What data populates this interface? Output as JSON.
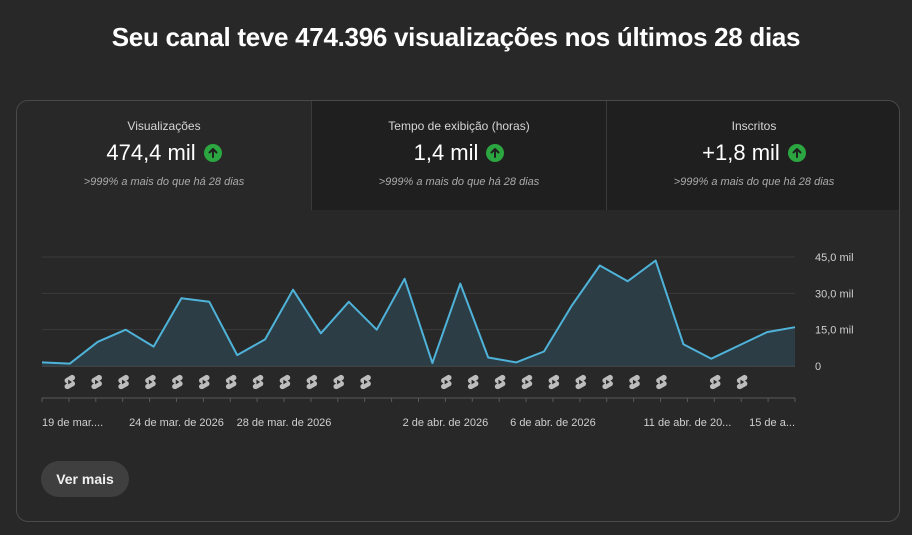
{
  "headline": "Seu canal teve 474.396 visualizações nos últimos 28 dias",
  "metrics": [
    {
      "label": "Visualizações",
      "value": "474,4 mil",
      "compare": ">999% a mais do que há 28 dias",
      "trend_icon": "arrow-up-icon"
    },
    {
      "label": "Tempo de exibição (horas)",
      "value": "1,4 mil",
      "compare": ">999% a mais do que há 28 dias",
      "trend_icon": "arrow-up-icon"
    },
    {
      "label": "Inscritos",
      "value": "+1,8 mil",
      "compare": ">999% a mais do que há 28 dias",
      "trend_icon": "arrow-up-icon"
    }
  ],
  "chart_data": {
    "type": "area",
    "series": [
      {
        "values": [
          1500,
          1000,
          10000,
          15000,
          8000,
          28000,
          26500,
          4500,
          11000,
          31500,
          13500,
          26500,
          15000,
          36000,
          1200,
          34000,
          3500,
          1500,
          6000,
          25000,
          41500,
          35000,
          43500,
          9000,
          3000,
          8500,
          14000,
          16000
        ]
      }
    ],
    "yticks": [
      "0",
      "15,0 mil",
      "30,0 mil",
      "45,0 mil"
    ],
    "ytick_values": [
      0,
      15000,
      30000,
      45000
    ],
    "ylim": [
      0,
      45000
    ],
    "xticks": [
      {
        "index": 0,
        "label": "19 de mar...."
      },
      {
        "index": 5,
        "label": "24 de mar. de 2026"
      },
      {
        "index": 9,
        "label": "28 de mar. de 2026"
      },
      {
        "index": 15,
        "label": "2 de abr. de 2026"
      },
      {
        "index": 19,
        "label": "6 de abr. de 2026"
      },
      {
        "index": 24,
        "label": "11 de abr. de 20..."
      },
      {
        "index": 28,
        "label": "15 de a..."
      }
    ],
    "markers_at": [
      1,
      2,
      3,
      4,
      5,
      6,
      7,
      8,
      9,
      10,
      11,
      12,
      15,
      16,
      17,
      18,
      19,
      20,
      21,
      22,
      23,
      25,
      26
    ],
    "marker_icon": "shorts-icon",
    "colors": {
      "line": "#4fb3d9",
      "fill": "#2c3f48",
      "grid": "#3a3a3a",
      "marker": "#bdbdbd"
    },
    "grid": true
  },
  "button": {
    "label": "Ver mais"
  }
}
